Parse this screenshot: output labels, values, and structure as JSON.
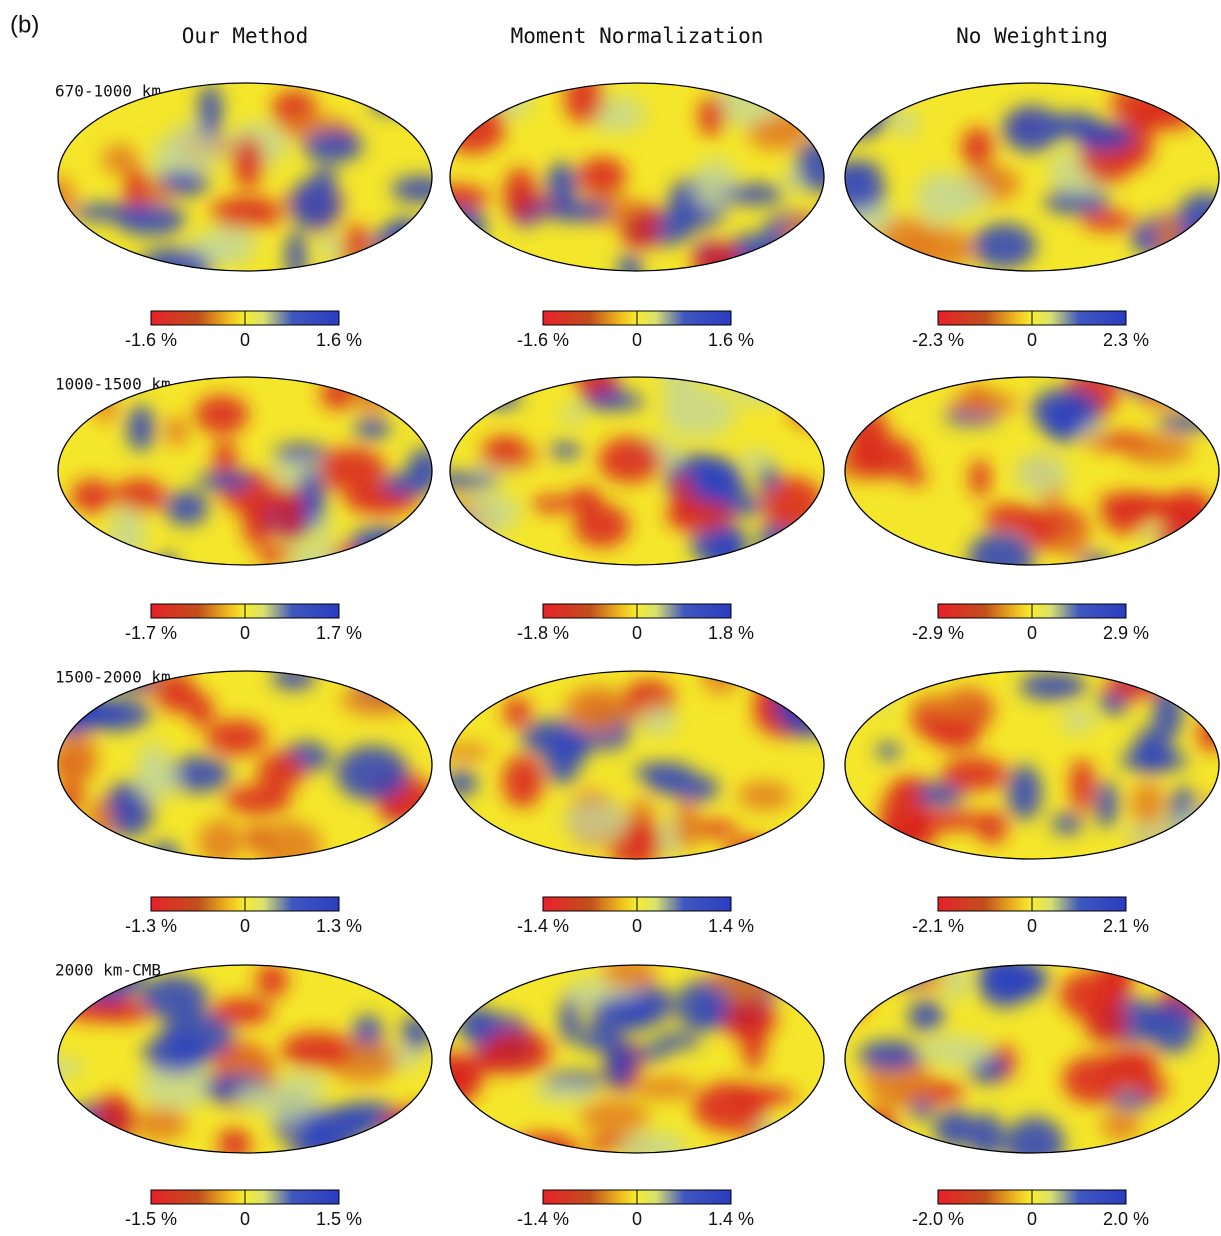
{
  "panel_label": "(b)",
  "columns": [
    "Our Method",
    "Moment Normalization",
    "No Weighting"
  ],
  "rows": [
    {
      "label": "670-1000 km",
      "colorbars": [
        [
          "-1.6 %",
          "0",
          "1.6 %"
        ],
        [
          "-1.6 %",
          "0",
          "1.6 %"
        ],
        [
          "-2.3 %",
          "0",
          "2.3 %"
        ]
      ]
    },
    {
      "label": "1000-1500 km",
      "colorbars": [
        [
          "-1.7 %",
          "0",
          "1.7 %"
        ],
        [
          "-1.8 %",
          "0",
          "1.8 %"
        ],
        [
          "-2.9 %",
          "0",
          "2.9 %"
        ]
      ]
    },
    {
      "label": "1500-2000 km",
      "colorbars": [
        [
          "-1.3 %",
          "0",
          "1.3 %"
        ],
        [
          "-1.4 %",
          "0",
          "1.4 %"
        ],
        [
          "-2.1 %",
          "0",
          "2.1 %"
        ]
      ]
    },
    {
      "label": "2000 km-CMB",
      "colorbars": [
        [
          "-1.5 %",
          "0",
          "1.5 %"
        ],
        [
          "-1.4 %",
          "0",
          "1.4 %"
        ],
        [
          "-2.0 %",
          "0",
          "2.0 %"
        ]
      ]
    }
  ]
}
